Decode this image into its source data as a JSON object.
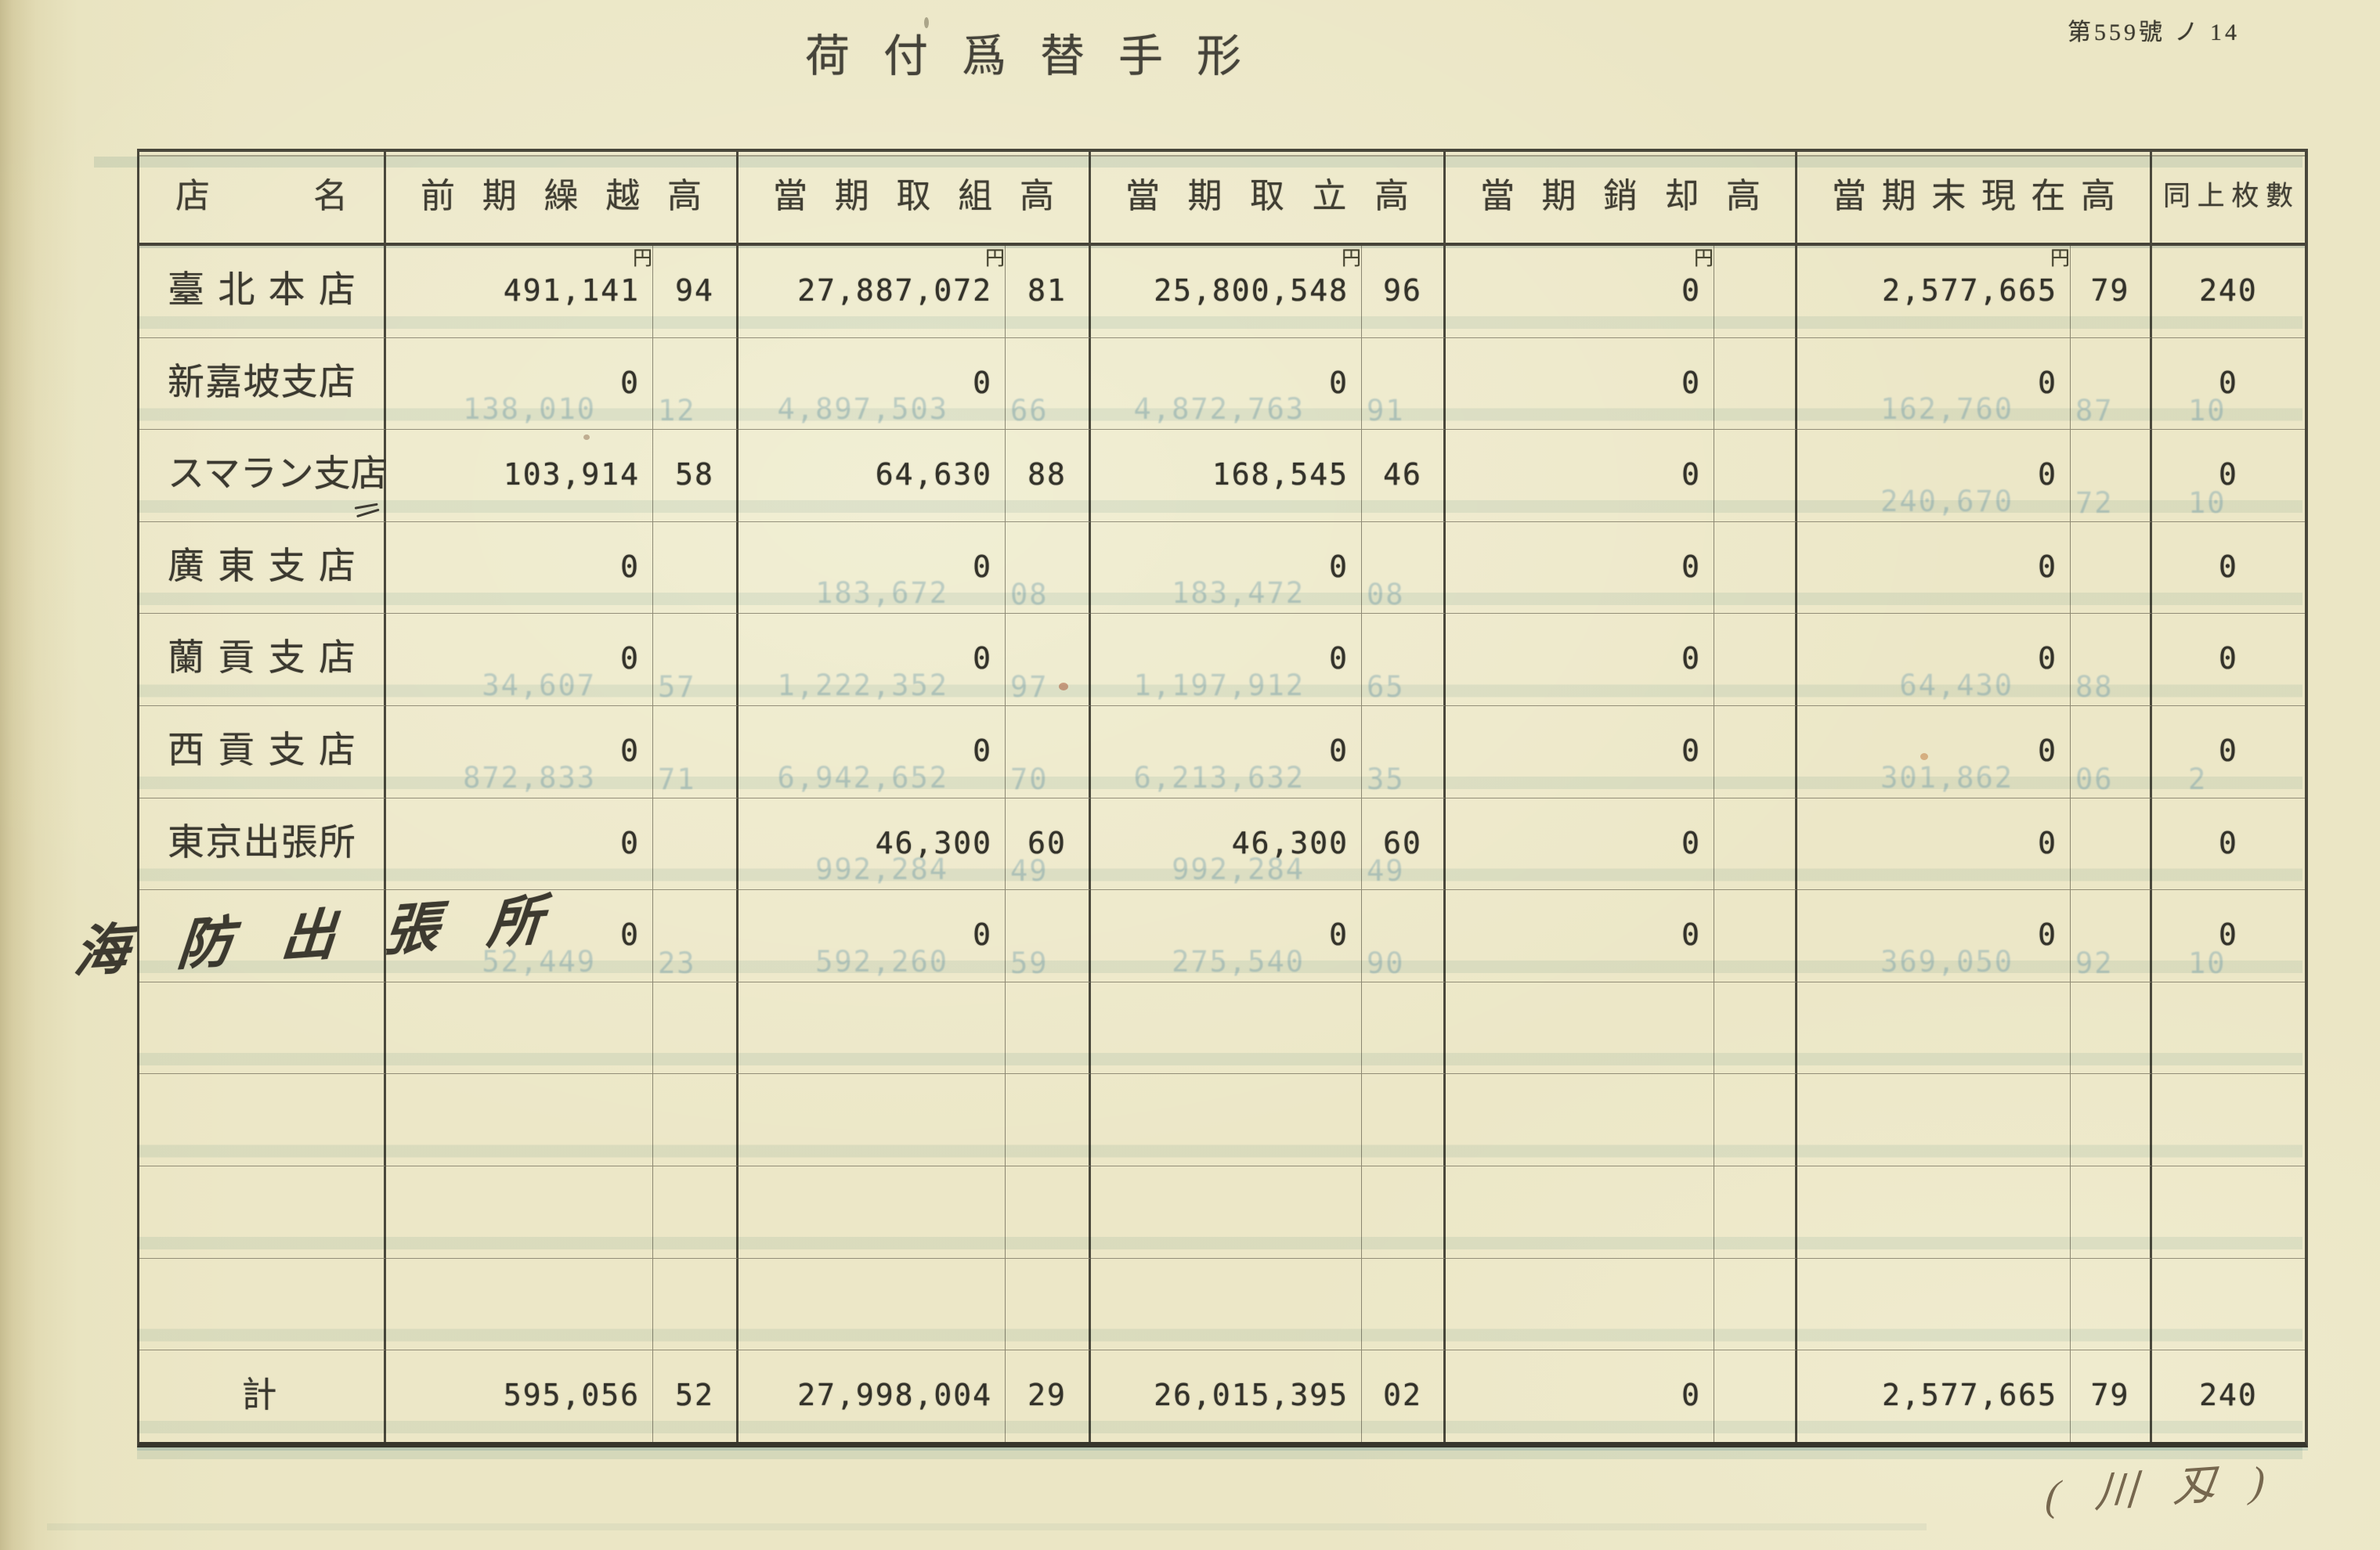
{
  "page": {
    "doc_number": "第559號 ノ 14",
    "title": "荷付爲替手形",
    "annotation": "( 川 刄 )",
    "yen_label": "円"
  },
  "table": {
    "columns": [
      {
        "label": "店名"
      },
      {
        "label": "前期繰越高"
      },
      {
        "label": "當期取組高"
      },
      {
        "label": "當期取立高"
      },
      {
        "label": "當期銷却高"
      },
      {
        "label": "當期末現在高"
      },
      {
        "label": "同上枚數"
      }
    ],
    "empty_row_count": 4,
    "rows": [
      {
        "name": "臺北本店",
        "handwritten": false,
        "prev": {
          "amt": "491,141",
          "sen": "94"
        },
        "drawn": {
          "amt": "27,887,072",
          "sen": "81"
        },
        "collected": {
          "amt": "25,800,548",
          "sen": "96"
        },
        "written_off": {
          "amt": "0",
          "sen": ""
        },
        "balance": {
          "amt": "2,577,665",
          "sen": "79"
        },
        "count": "240"
      },
      {
        "name": "新嘉坡支店",
        "handwritten": false,
        "prev": {
          "amt": "0",
          "sen": "",
          "ghost_amt": "138,010",
          "ghost_sen": "12"
        },
        "drawn": {
          "amt": "0",
          "sen": "",
          "ghost_amt": "4,897,503",
          "ghost_sen": "66"
        },
        "collected": {
          "amt": "0",
          "sen": "",
          "ghost_amt": "4,872,763",
          "ghost_sen": "91"
        },
        "written_off": {
          "amt": "0",
          "sen": ""
        },
        "balance": {
          "amt": "0",
          "sen": "",
          "ghost_amt": "162,760",
          "ghost_sen": "87"
        },
        "count": "0",
        "ghost_count": "10"
      },
      {
        "name": "スマラン支店",
        "handwritten": false,
        "prev": {
          "amt": "103,914",
          "sen": "58"
        },
        "drawn": {
          "amt": "64,630",
          "sen": "88"
        },
        "collected": {
          "amt": "168,545",
          "sen": "46"
        },
        "written_off": {
          "amt": "0",
          "sen": ""
        },
        "balance": {
          "amt": "0",
          "sen": "",
          "ghost_amt": "240,670",
          "ghost_sen": "72"
        },
        "count": "0",
        "ghost_count": "10"
      },
      {
        "name": "廣東支店",
        "handwritten": false,
        "prev": {
          "amt": "0",
          "sen": ""
        },
        "drawn": {
          "amt": "0",
          "sen": "",
          "ghost_amt": "183,672",
          "ghost_sen": "08"
        },
        "collected": {
          "amt": "0",
          "sen": "",
          "ghost_amt": "183,472",
          "ghost_sen": "08"
        },
        "written_off": {
          "amt": "0",
          "sen": ""
        },
        "balance": {
          "amt": "0",
          "sen": ""
        },
        "count": "0"
      },
      {
        "name": "蘭貢支店",
        "handwritten": false,
        "prev": {
          "amt": "0",
          "sen": "",
          "ghost_amt": "34,607",
          "ghost_sen": "57"
        },
        "drawn": {
          "amt": "0",
          "sen": "",
          "ghost_amt": "1,222,352",
          "ghost_sen": "97"
        },
        "collected": {
          "amt": "0",
          "sen": "",
          "ghost_amt": "1,197,912",
          "ghost_sen": "65"
        },
        "written_off": {
          "amt": "0",
          "sen": ""
        },
        "balance": {
          "amt": "0",
          "sen": "",
          "ghost_amt": "64,430",
          "ghost_sen": "88"
        },
        "count": "0"
      },
      {
        "name": "西貢支店",
        "handwritten": false,
        "prev": {
          "amt": "0",
          "sen": "",
          "ghost_amt": "872,833",
          "ghost_sen": "71"
        },
        "drawn": {
          "amt": "0",
          "sen": "",
          "ghost_amt": "6,942,652",
          "ghost_sen": "70"
        },
        "collected": {
          "amt": "0",
          "sen": "",
          "ghost_amt": "6,213,632",
          "ghost_sen": "35"
        },
        "written_off": {
          "amt": "0",
          "sen": ""
        },
        "balance": {
          "amt": "0",
          "sen": "",
          "ghost_amt": "301,862",
          "ghost_sen": "06"
        },
        "count": "0",
        "ghost_count": "2"
      },
      {
        "name": "東京出張所",
        "handwritten": false,
        "prev": {
          "amt": "0",
          "sen": ""
        },
        "drawn": {
          "amt": "46,300",
          "sen": "60",
          "ghost_amt": "992,284",
          "ghost_sen": "49"
        },
        "collected": {
          "amt": "46,300",
          "sen": "60",
          "ghost_amt": "992,284",
          "ghost_sen": "49"
        },
        "written_off": {
          "amt": "0",
          "sen": ""
        },
        "balance": {
          "amt": "0",
          "sen": ""
        },
        "count": "0"
      },
      {
        "name": "海防出張所",
        "handwritten": true,
        "prev": {
          "amt": "0",
          "sen": "",
          "ghost_amt": "52,449",
          "ghost_sen": "23"
        },
        "drawn": {
          "amt": "0",
          "sen": "",
          "ghost_amt": "592,260",
          "ghost_sen": "59"
        },
        "collected": {
          "amt": "0",
          "sen": "",
          "ghost_amt": "275,540",
          "ghost_sen": "90"
        },
        "written_off": {
          "amt": "0",
          "sen": ""
        },
        "balance": {
          "amt": "0",
          "sen": "",
          "ghost_amt": "369,050",
          "ghost_sen": "92"
        },
        "count": "0",
        "ghost_count": "10"
      }
    ],
    "total": {
      "name": "計",
      "prev": {
        "amt": "595,056",
        "sen": "52"
      },
      "drawn": {
        "amt": "27,998,004",
        "sen": "29"
      },
      "collected": {
        "amt": "26,015,395",
        "sen": "02"
      },
      "written_off": {
        "amt": "0",
        "sen": ""
      },
      "balance": {
        "amt": "2,577,665",
        "sen": "79"
      },
      "count": "240"
    }
  }
}
